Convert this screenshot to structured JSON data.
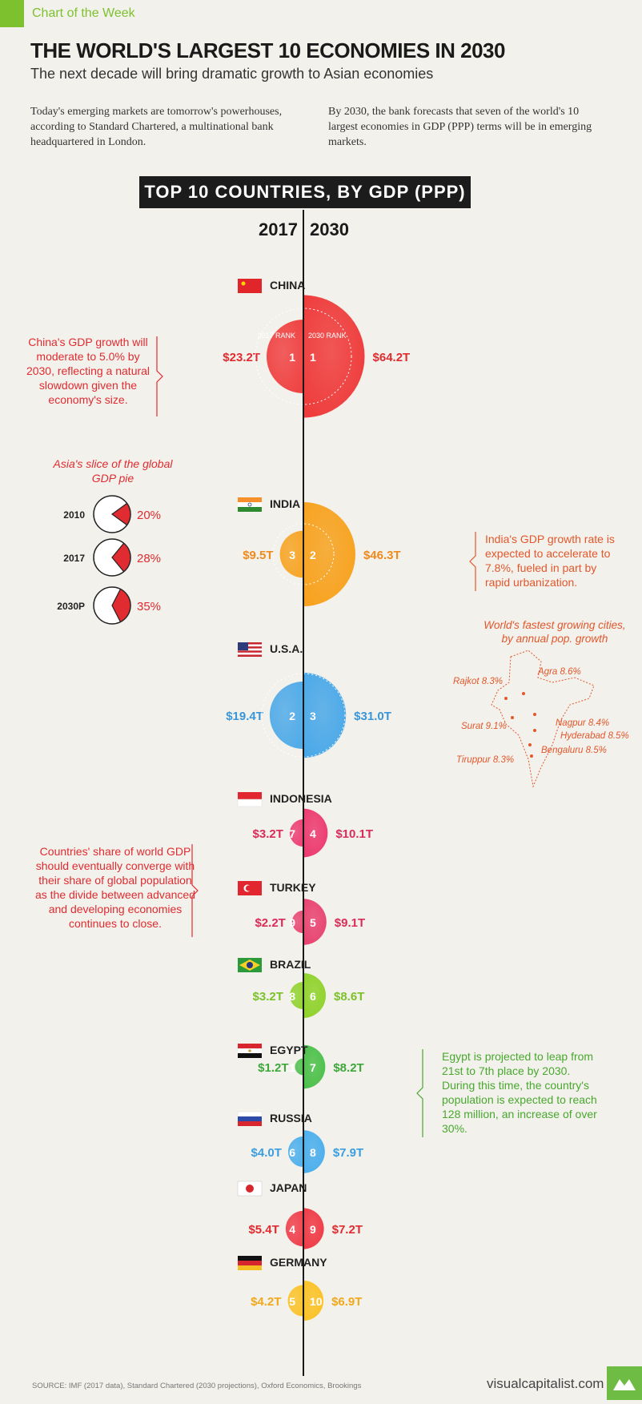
{
  "header": {
    "tag": "Chart of the Week"
  },
  "title": "THE WORLD'S LARGEST 10 ECONOMIES IN 2030",
  "subtitle": "The next decade will bring dramatic growth to Asian economies",
  "intro_left": "Today's emerging markets are tomorrow's powerhouses, according to Standard Chartered, a multinational bank headquartered in London.",
  "intro_right": "By 2030, the bank forecasts that seven of the world's 10 largest economies in GDP (PPP) terms will be in emerging markets.",
  "banner": "TOP 10 COUNTRIES, BY GDP (PPP)",
  "col_2017": "2017",
  "col_2030": "2030",
  "rank_label_2017": "2017 RANK",
  "rank_label_2030": "2030 RANK",
  "chart_data": {
    "type": "bubble",
    "title": "TOP 10 COUNTRIES, BY GDP (PPP)",
    "columns": [
      "2017",
      "2030"
    ],
    "countries": [
      {
        "name": "CHINA",
        "gdp_2017": "$23.2T",
        "gdp_2030": "$64.2T",
        "v2017": 23.2,
        "v2030": 64.2,
        "rank_2017": "1",
        "rank_2030": "1",
        "color": "#ef3b3b",
        "label_color": "#e02b30",
        "flag": "china"
      },
      {
        "name": "INDIA",
        "gdp_2017": "$9.5T",
        "gdp_2030": "$46.3T",
        "v2017": 9.5,
        "v2030": 46.3,
        "rank_2017": "3",
        "rank_2030": "2",
        "color": "#f7a21e",
        "label_color": "#ef8a1c",
        "flag": "india"
      },
      {
        "name": "U.S.A.",
        "gdp_2017": "$19.4T",
        "gdp_2030": "$31.0T",
        "v2017": 19.4,
        "v2030": 31.0,
        "rank_2017": "2",
        "rank_2030": "3",
        "color": "#4aa8e8",
        "label_color": "#3a96d8",
        "flag": "usa"
      },
      {
        "name": "INDONESIA",
        "gdp_2017": "$3.2T",
        "gdp_2030": "$10.1T",
        "v2017": 3.2,
        "v2030": 10.1,
        "rank_2017": "7",
        "rank_2030": "4",
        "color": "#ec3a6e",
        "label_color": "#d92c58",
        "flag": "indonesia"
      },
      {
        "name": "TURKEY",
        "gdp_2017": "$2.2T",
        "gdp_2030": "$9.1T",
        "v2017": 2.2,
        "v2030": 9.1,
        "rank_2017": "9",
        "rank_2030": "5",
        "color": "#e8436f",
        "label_color": "#d92c58",
        "flag": "turkey"
      },
      {
        "name": "BRAZIL",
        "gdp_2017": "$3.2T",
        "gdp_2030": "$8.6T",
        "v2017": 3.2,
        "v2030": 8.6,
        "rank_2017": "8",
        "rank_2030": "6",
        "color": "#8fd22a",
        "label_color": "#7cc12a",
        "flag": "brazil"
      },
      {
        "name": "EGYPT",
        "gdp_2017": "$1.2T",
        "gdp_2030": "$8.2T",
        "v2017": 1.2,
        "v2030": 8.2,
        "rank_2017": "21",
        "rank_2030": "7",
        "color": "#4cc04a",
        "label_color": "#3da83a",
        "flag": "egypt"
      },
      {
        "name": "RUSSIA",
        "gdp_2017": "$4.0T",
        "gdp_2030": "$7.9T",
        "v2017": 4.0,
        "v2030": 7.9,
        "rank_2017": "6",
        "rank_2030": "8",
        "color": "#4aaeec",
        "label_color": "#3a9ee0",
        "flag": "russia"
      },
      {
        "name": "JAPAN",
        "gdp_2017": "$5.4T",
        "gdp_2030": "$7.2T",
        "v2017": 5.4,
        "v2030": 7.2,
        "rank_2017": "4",
        "rank_2030": "9",
        "color": "#ef3a46",
        "label_color": "#e02b30",
        "flag": "japan"
      },
      {
        "name": "GERMANY",
        "gdp_2017": "$4.2T",
        "gdp_2030": "$6.9T",
        "v2017": 4.2,
        "v2030": 6.9,
        "rank_2017": "5",
        "rank_2030": "10",
        "color": "#fbc225",
        "label_color": "#f0a81c",
        "flag": "germany"
      }
    ],
    "asia_share": {
      "title": "Asia's slice of the global GDP pie",
      "items": [
        {
          "year": "2010",
          "label": "20%",
          "value": 20
        },
        {
          "year": "2017",
          "label": "28%",
          "value": 28
        },
        {
          "year": "2030P",
          "label": "35%",
          "value": 35
        }
      ]
    },
    "india_cities": {
      "title": "World's fastest growing cities, by annual pop. growth",
      "items": [
        {
          "label": "Agra 8.6%"
        },
        {
          "label": "Rajkot 8.3%"
        },
        {
          "label": "Nagpur 8.4%"
        },
        {
          "label": "Surat 9.1%"
        },
        {
          "label": "Hyderabad 8.5%"
        },
        {
          "label": "Bengaluru 8.5%"
        },
        {
          "label": "Tiruppur 8.3%"
        }
      ]
    }
  },
  "notes": {
    "china": "China's GDP growth will moderate to 5.0% by 2030, reflecting a natural slowdown given the economy's size.",
    "india": "India's GDP growth rate is expected to accelerate to 7.8%, fueled in part by rapid urbanization.",
    "convergence": "Countries' share of world GDP should eventually converge with their share of global population as the divide between advanced and developing economies continues to close.",
    "egypt": "Egypt is projected to leap from 21st to 7th place by 2030. During this time, the country's population is expected to reach 128 million, an increase of over 30%."
  },
  "footer": {
    "source": "SOURCE: IMF (2017 data), Standard Chartered (2030 projections), Oxford Economics, Brookings",
    "site": "visualcapitalist.com"
  },
  "colors": {
    "accent_green": "#7dc12f",
    "red": "#e02b30",
    "orange": "#e2572b",
    "dark": "#1c1c1c"
  }
}
